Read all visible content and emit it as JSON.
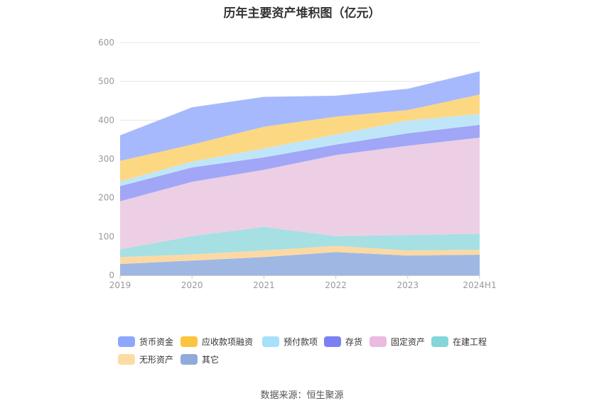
{
  "chart_data": {
    "type": "area",
    "title": "历年主要资产堆积图（亿元）",
    "categories": [
      "2019",
      "2020",
      "2021",
      "2022",
      "2023",
      "2024H1"
    ],
    "yticks": [
      "0",
      "100",
      "200",
      "300",
      "400",
      "500",
      "600"
    ],
    "ylim": [
      0,
      600
    ],
    "stacked": true,
    "grid": true,
    "legend_position": "bottom",
    "series": [
      {
        "name": "其它",
        "color": "#9fb8e3",
        "values": [
          29,
          38,
          47,
          60,
          51,
          53
        ]
      },
      {
        "name": "无形资产",
        "color": "#fcd9a4",
        "values": [
          18,
          16,
          17,
          16,
          13,
          13
        ]
      },
      {
        "name": "在建工程",
        "color": "#a6e0e2",
        "values": [
          20,
          47,
          61,
          25,
          40,
          41
        ]
      },
      {
        "name": "固定资产",
        "color": "#eccfe5",
        "values": [
          124,
          140,
          147,
          209,
          230,
          248
        ]
      },
      {
        "name": "存货",
        "color": "#a1a6f7",
        "values": [
          39,
          37,
          32,
          27,
          32,
          33
        ]
      },
      {
        "name": "预付款项",
        "color": "#bfe6f8",
        "values": [
          12,
          15,
          23,
          26,
          33,
          28
        ]
      },
      {
        "name": "应收款项融资",
        "color": "#fdd882",
        "values": [
          53,
          44,
          56,
          46,
          27,
          50
        ]
      },
      {
        "name": "货币资金",
        "color": "#a6b9fc",
        "values": [
          66,
          96,
          77,
          54,
          55,
          60
        ]
      }
    ]
  },
  "legend": [
    {
      "label": "货币资金",
      "color": "#8da8fb"
    },
    {
      "label": "应收款项融资",
      "color": "#fcc43f"
    },
    {
      "label": "预付款项",
      "color": "#a8e0f9"
    },
    {
      "label": "存货",
      "color": "#7b80f2"
    },
    {
      "label": "固定资产",
      "color": "#eabbe0"
    },
    {
      "label": "在建工程",
      "color": "#84d6d8"
    },
    {
      "label": "无形资产",
      "color": "#fddca3"
    },
    {
      "label": "其它",
      "color": "#90aadb"
    }
  ],
  "source": "数据来源：恒生聚源"
}
